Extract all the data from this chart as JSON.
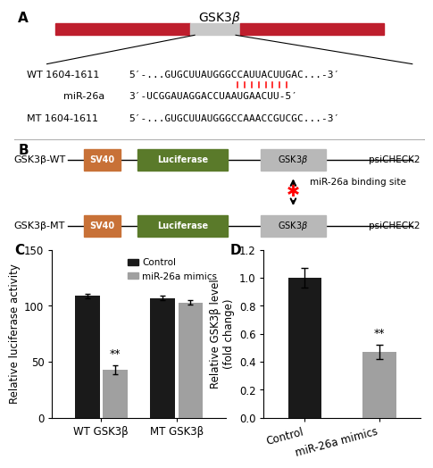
{
  "panel_A": {
    "title": "GSK3β",
    "wt_label": "WT 1604-1611  5’-...GUGCUUAUGGGCCAUUACUUGAC...-3’",
    "mir_seq_label": "miR-26a 3’-UCGGAUAGGACCUAAUGAACUU-5’",
    "mt_label": "MT 1604-1611  5’-...GUGCUUAUGGGCCAAACCGUCGC...-3’",
    "wt_text": "WT 1604-1611",
    "wt_seq": "5′-...GUGCUUAUGGGCCAUUACUUGAC...-3′",
    "mir_text": "miR-26a",
    "mir_seq": "3′-UCGGAUAGGACCUAAUGAACUU-5′",
    "mt_text": "MT 1604-1611",
    "mt_seq": "5′-...GUGCUUAUGGGCCAAACCGUCGC...-3′",
    "red_bar_color": "#be1e2d",
    "grey_bar_color": "#c8c8c8"
  },
  "panel_B": {
    "sv40_color": "#c87137",
    "luciferase_color": "#5a7a2a",
    "gsk3b_color": "#b8b8b8",
    "wt_label": "GSK3β-WT",
    "mt_label": "GSK3β-MT",
    "psicheck_label": "psiCHECK2",
    "binding_label": "miR-26a binding site"
  },
  "panel_C": {
    "categories": [
      "WT GSK3β",
      "MT GSK3β"
    ],
    "control_values": [
      109,
      107
    ],
    "mimic_values": [
      43,
      103
    ],
    "control_errors": [
      2,
      2
    ],
    "mimic_errors": [
      4,
      2
    ],
    "control_color": "#1a1a1a",
    "mimic_color": "#a0a0a0",
    "ylabel": "Relative luciferase activity",
    "ylim": [
      0,
      150
    ],
    "yticks": [
      0,
      50,
      100,
      150
    ],
    "legend_control": "Control",
    "legend_mimic": "miR-26a mimics"
  },
  "panel_D": {
    "categories": [
      "Control",
      "miR-26a mimics"
    ],
    "values": [
      1.0,
      0.47
    ],
    "errors": [
      0.07,
      0.05
    ],
    "control_color": "#1a1a1a",
    "mimic_color": "#a0a0a0",
    "ylabel": "Relative GSK3β level\n(fold change)",
    "ylim": [
      0,
      1.2
    ],
    "yticks": [
      0.0,
      0.2,
      0.4,
      0.6,
      0.8,
      1.0,
      1.2
    ]
  },
  "bg_color": "#ffffff"
}
